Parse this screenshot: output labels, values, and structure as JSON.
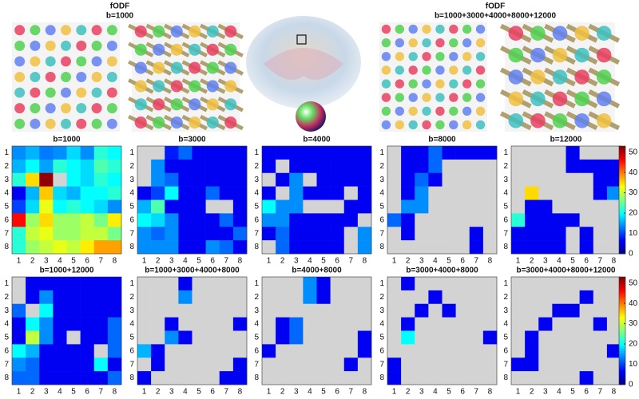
{
  "top_labels": [
    {
      "title": "fODF",
      "subtitle": "b=1000"
    },
    {
      "title": "fODF",
      "subtitle": "b=1000+3000+4000+8000+12000"
    }
  ],
  "chart_data": [
    {
      "type": "heatmap",
      "title": "b=1000",
      "x": [
        1,
        2,
        3,
        4,
        5,
        6,
        7,
        8
      ],
      "y": [
        1,
        2,
        3,
        4,
        5,
        6,
        7,
        8
      ],
      "colormap": "jet",
      "clim": [
        0,
        53
      ],
      "missing_color": "#d3d3d3",
      "colorbar": false,
      "values": [
        [
          14,
          16,
          13,
          14,
          18,
          14,
          22,
          20
        ],
        [
          16,
          20,
          15,
          22,
          20,
          18,
          24,
          22
        ],
        [
          22,
          35,
          52,
          null,
          20,
          18,
          22,
          20
        ],
        [
          6,
          16,
          36,
          18,
          16,
          20,
          20,
          22
        ],
        [
          10,
          18,
          32,
          20,
          22,
          20,
          18,
          14
        ],
        [
          46,
          28,
          35,
          28,
          28,
          30,
          26,
          34
        ],
        [
          22,
          30,
          32,
          28,
          28,
          30,
          30,
          26
        ],
        [
          22,
          28,
          30,
          32,
          30,
          34,
          38,
          38
        ]
      ]
    },
    {
      "type": "heatmap",
      "title": "b=3000",
      "x": [
        1,
        2,
        3,
        4,
        5,
        6,
        7,
        8
      ],
      "y": [
        1,
        2,
        3,
        4,
        5,
        6,
        7,
        8
      ],
      "colormap": "jet",
      "clim": [
        0,
        53
      ],
      "missing_color": "#d3d3d3",
      "colorbar": false,
      "values": [
        [
          null,
          null,
          8,
          12,
          6,
          6,
          6,
          6
        ],
        [
          null,
          14,
          6,
          6,
          6,
          6,
          6,
          6
        ],
        [
          null,
          14,
          12,
          6,
          6,
          6,
          6,
          6
        ],
        [
          6,
          10,
          20,
          6,
          6,
          12,
          6,
          6
        ],
        [
          16,
          24,
          6,
          6,
          6,
          null,
          null,
          6
        ],
        [
          20,
          18,
          14,
          6,
          6,
          6,
          12,
          6
        ],
        [
          14,
          12,
          14,
          6,
          6,
          6,
          6,
          12
        ],
        [
          14,
          14,
          14,
          6,
          6,
          14,
          12,
          6
        ]
      ]
    },
    {
      "type": "heatmap",
      "title": "b=4000",
      "x": [
        1,
        2,
        3,
        4,
        5,
        6,
        7,
        8
      ],
      "y": [
        1,
        2,
        3,
        4,
        5,
        6,
        7,
        8
      ],
      "colormap": "jet",
      "clim": [
        0,
        53
      ],
      "missing_color": "#d3d3d3",
      "colorbar": false,
      "values": [
        [
          6,
          6,
          6,
          6,
          6,
          6,
          6,
          6
        ],
        [
          6,
          null,
          6,
          6,
          6,
          6,
          6,
          6
        ],
        [
          null,
          6,
          14,
          null,
          6,
          6,
          6,
          6
        ],
        [
          6,
          null,
          14,
          6,
          6,
          6,
          null,
          6
        ],
        [
          20,
          14,
          14,
          null,
          null,
          null,
          6,
          6
        ],
        [
          14,
          14,
          6,
          6,
          6,
          6,
          6,
          null
        ],
        [
          6,
          12,
          6,
          6,
          6,
          6,
          null,
          14
        ],
        [
          null,
          12,
          6,
          6,
          6,
          6,
          null,
          14
        ]
      ]
    },
    {
      "type": "heatmap",
      "title": "b=8000",
      "x": [
        1,
        2,
        3,
        4,
        5,
        6,
        7,
        8
      ],
      "y": [
        1,
        2,
        3,
        4,
        5,
        6,
        7,
        8
      ],
      "colormap": "jet",
      "clim": [
        0,
        53
      ],
      "missing_color": "#d3d3d3",
      "colorbar": false,
      "values": [
        [
          null,
          6,
          6,
          12,
          6,
          6,
          6,
          6
        ],
        [
          null,
          6,
          6,
          12,
          null,
          null,
          null,
          null
        ],
        [
          null,
          6,
          12,
          6,
          null,
          null,
          null,
          null
        ],
        [
          null,
          6,
          14,
          null,
          null,
          null,
          null,
          null
        ],
        [
          null,
          14,
          14,
          null,
          null,
          null,
          null,
          null
        ],
        [
          12,
          6,
          null,
          null,
          null,
          null,
          null,
          null
        ],
        [
          null,
          6,
          null,
          null,
          null,
          null,
          6,
          null
        ],
        [
          null,
          null,
          null,
          null,
          null,
          null,
          6,
          null
        ]
      ]
    },
    {
      "type": "heatmap",
      "title": "b=12000",
      "x": [
        1,
        2,
        3,
        4,
        5,
        6,
        7,
        8
      ],
      "y": [
        1,
        2,
        3,
        4,
        5,
        6,
        7,
        8
      ],
      "colormap": "jet",
      "clim": [
        0,
        53
      ],
      "missing_color": "#d3d3d3",
      "colorbar": true,
      "cticks": [
        0,
        10,
        20,
        30,
        40,
        50
      ],
      "values": [
        [
          null,
          null,
          null,
          null,
          6,
          null,
          null,
          null
        ],
        [
          null,
          null,
          null,
          null,
          6,
          6,
          6,
          6
        ],
        [
          null,
          null,
          null,
          null,
          null,
          null,
          6,
          6
        ],
        [
          null,
          35,
          null,
          null,
          null,
          null,
          6,
          14
        ],
        [
          null,
          6,
          6,
          null,
          null,
          null,
          null,
          null
        ],
        [
          22,
          6,
          6,
          6,
          6,
          null,
          null,
          null
        ],
        [
          6,
          6,
          6,
          6,
          null,
          6,
          null,
          null
        ],
        [
          6,
          6,
          6,
          6,
          null,
          6,
          null,
          null
        ]
      ]
    },
    {
      "type": "heatmap",
      "title": "b=1000+12000",
      "x": [
        1,
        2,
        3,
        4,
        5,
        6,
        7,
        8
      ],
      "y": [
        1,
        2,
        3,
        4,
        5,
        6,
        7,
        8
      ],
      "colormap": "jet",
      "clim": [
        0,
        53
      ],
      "missing_color": "#d3d3d3",
      "colorbar": false,
      "values": [
        [
          null,
          6,
          6,
          6,
          6,
          6,
          6,
          6
        ],
        [
          null,
          6,
          14,
          6,
          6,
          6,
          6,
          6
        ],
        [
          12,
          null,
          20,
          6,
          6,
          6,
          6,
          6
        ],
        [
          6,
          20,
          14,
          6,
          6,
          6,
          6,
          12
        ],
        [
          6,
          30,
          14,
          6,
          null,
          6,
          6,
          12
        ],
        [
          20,
          16,
          6,
          6,
          6,
          6,
          null,
          12
        ],
        [
          14,
          12,
          6,
          6,
          6,
          6,
          20,
          6
        ],
        [
          12,
          12,
          6,
          6,
          6,
          6,
          6,
          12
        ]
      ]
    },
    {
      "type": "heatmap",
      "title": "b=1000+3000+4000+8000",
      "x": [
        1,
        2,
        3,
        4,
        5,
        6,
        7,
        8
      ],
      "y": [
        1,
        2,
        3,
        4,
        5,
        6,
        7,
        8
      ],
      "colormap": "jet",
      "clim": [
        0,
        53
      ],
      "missing_color": "#d3d3d3",
      "colorbar": false,
      "values": [
        [
          null,
          null,
          null,
          6,
          null,
          null,
          null,
          null
        ],
        [
          null,
          null,
          null,
          14,
          null,
          null,
          null,
          null
        ],
        [
          null,
          null,
          null,
          null,
          null,
          null,
          null,
          null
        ],
        [
          null,
          null,
          6,
          null,
          null,
          null,
          null,
          6
        ],
        [
          null,
          null,
          14,
          6,
          null,
          null,
          null,
          null
        ],
        [
          16,
          6,
          null,
          null,
          null,
          null,
          null,
          null
        ],
        [
          null,
          6,
          null,
          null,
          null,
          null,
          null,
          6
        ],
        [
          6,
          null,
          null,
          null,
          null,
          null,
          6,
          6
        ]
      ]
    },
    {
      "type": "heatmap",
      "title": "b=4000+8000",
      "x": [
        1,
        2,
        3,
        4,
        5,
        6,
        7,
        8
      ],
      "y": [
        1,
        2,
        3,
        4,
        5,
        6,
        7,
        8
      ],
      "colormap": "jet",
      "clim": [
        0,
        53
      ],
      "missing_color": "#d3d3d3",
      "colorbar": false,
      "values": [
        [
          null,
          null,
          null,
          14,
          6,
          null,
          null,
          null
        ],
        [
          null,
          null,
          null,
          14,
          6,
          null,
          null,
          null
        ],
        [
          null,
          null,
          null,
          null,
          null,
          null,
          null,
          null
        ],
        [
          null,
          6,
          12,
          null,
          null,
          null,
          null,
          null
        ],
        [
          null,
          6,
          12,
          null,
          null,
          null,
          null,
          6
        ],
        [
          6,
          null,
          null,
          null,
          null,
          null,
          null,
          6
        ],
        [
          null,
          null,
          null,
          null,
          null,
          null,
          6,
          null
        ],
        [
          null,
          null,
          null,
          null,
          null,
          null,
          null,
          null
        ]
      ]
    },
    {
      "type": "heatmap",
      "title": "b=3000+4000+8000",
      "x": [
        1,
        2,
        3,
        4,
        5,
        6,
        7,
        8
      ],
      "y": [
        1,
        2,
        3,
        4,
        5,
        6,
        7,
        8
      ],
      "colormap": "jet",
      "clim": [
        0,
        53
      ],
      "missing_color": "#d3d3d3",
      "colorbar": false,
      "values": [
        [
          null,
          6,
          null,
          null,
          null,
          null,
          null,
          null
        ],
        [
          null,
          null,
          null,
          6,
          null,
          null,
          null,
          null
        ],
        [
          null,
          null,
          6,
          null,
          6,
          null,
          null,
          null
        ],
        [
          null,
          6,
          null,
          null,
          null,
          null,
          null,
          null
        ],
        [
          null,
          20,
          null,
          null,
          null,
          null,
          null,
          6
        ],
        [
          null,
          null,
          null,
          null,
          null,
          null,
          null,
          null
        ],
        [
          6,
          null,
          null,
          null,
          null,
          null,
          null,
          null
        ],
        [
          6,
          null,
          null,
          null,
          null,
          null,
          null,
          null
        ]
      ]
    },
    {
      "type": "heatmap",
      "title": "b=3000+4000+8000+12000",
      "x": [
        1,
        2,
        3,
        4,
        5,
        6,
        7,
        8
      ],
      "y": [
        1,
        2,
        3,
        4,
        5,
        6,
        7,
        8
      ],
      "colormap": "jet",
      "clim": [
        0,
        53
      ],
      "missing_color": "#d3d3d3",
      "colorbar": true,
      "cticks": [
        0,
        10,
        20,
        30,
        40,
        50
      ],
      "values": [
        [
          null,
          null,
          null,
          null,
          null,
          null,
          null,
          null
        ],
        [
          null,
          null,
          null,
          null,
          null,
          6,
          null,
          null
        ],
        [
          null,
          null,
          null,
          6,
          6,
          null,
          null,
          null
        ],
        [
          null,
          null,
          6,
          null,
          null,
          null,
          6,
          null
        ],
        [
          null,
          6,
          null,
          null,
          null,
          null,
          null,
          null
        ],
        [
          null,
          6,
          null,
          null,
          null,
          null,
          null,
          6
        ],
        [
          6,
          6,
          null,
          null,
          null,
          null,
          null,
          null
        ],
        [
          null,
          null,
          null,
          null,
          null,
          6,
          null,
          null
        ]
      ]
    }
  ]
}
